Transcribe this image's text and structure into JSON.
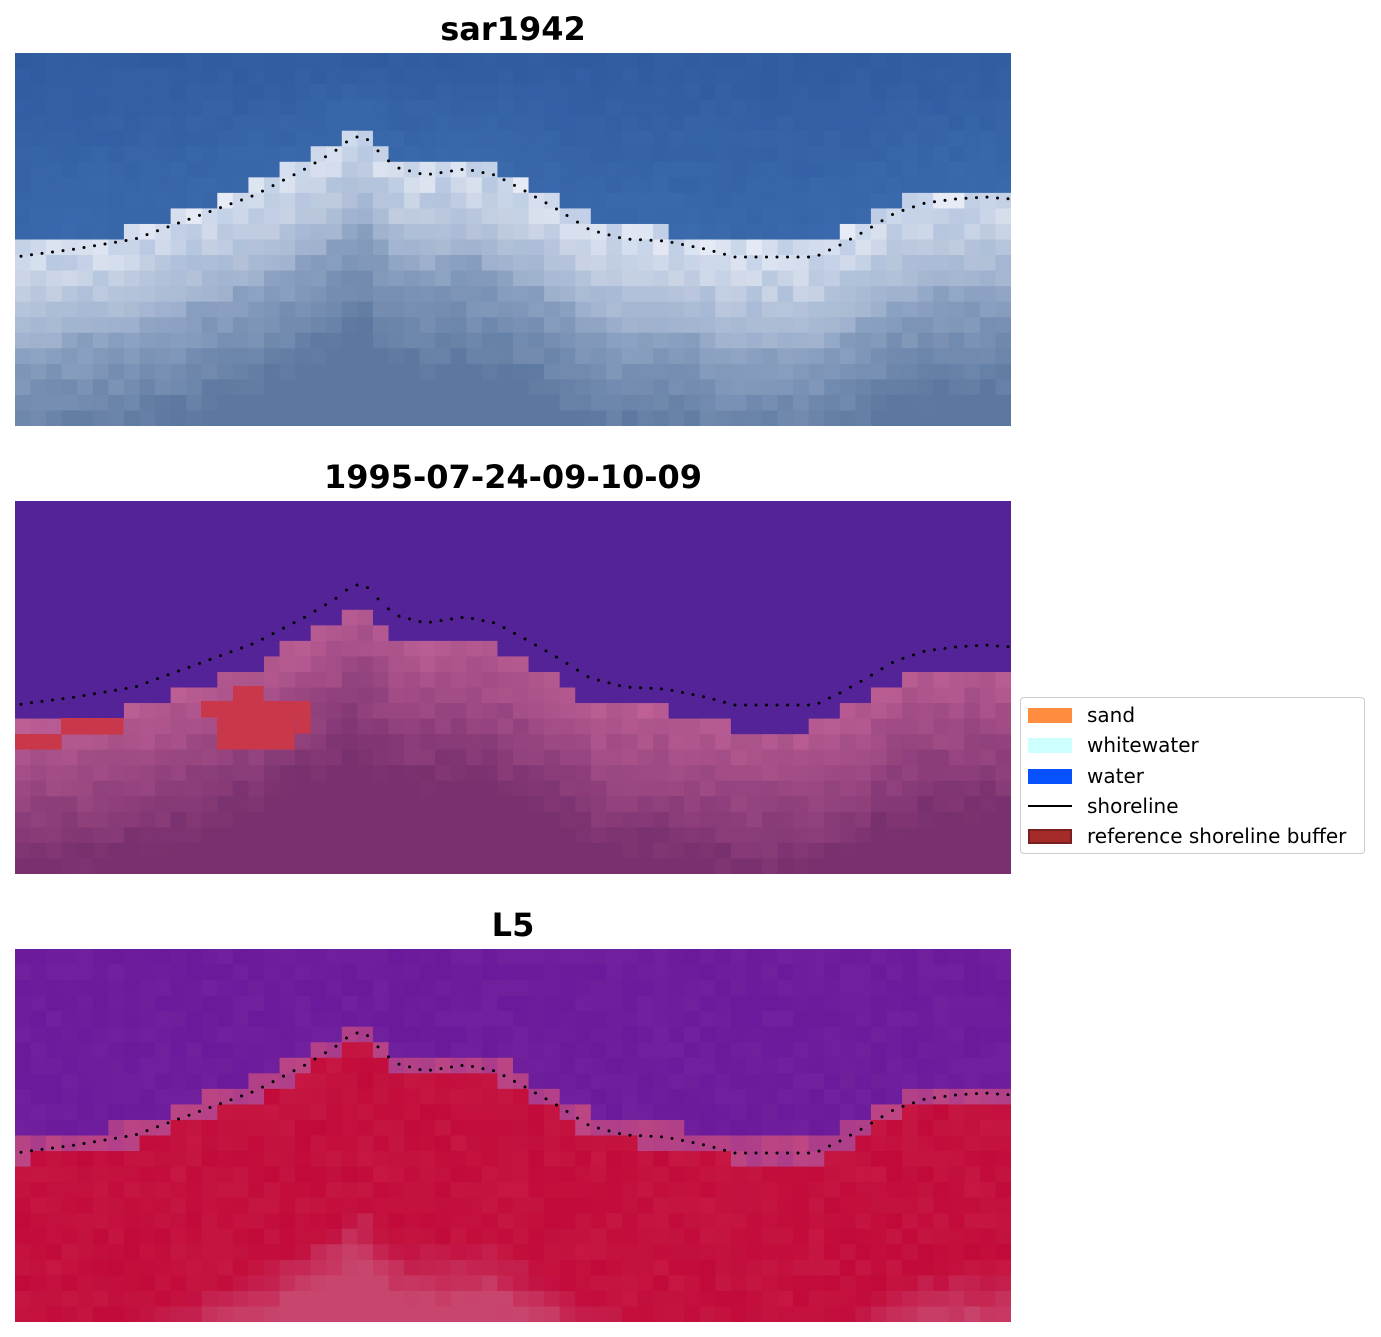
{
  "panels": [
    {
      "title": "sar1942",
      "style": "rgb"
    },
    {
      "title": "1995-07-24-09-10-09",
      "style": "classified"
    },
    {
      "title": "L5",
      "style": "index"
    }
  ],
  "legend": {
    "items": [
      {
        "label": "sand",
        "color": "#ff8c3f"
      },
      {
        "label": "whitewater",
        "color": "#ccfffe"
      },
      {
        "label": "water",
        "color": "#0852fe"
      },
      {
        "label": "shoreline",
        "color": "#000000",
        "kind": "line"
      },
      {
        "label": "reference shoreline buffer",
        "color": "#a52a2a"
      }
    ]
  },
  "colors": {
    "water_rgb": "#2f5a9e",
    "water_class": "#542397",
    "index_low": "#6a1a9a",
    "index_high": "#c20a3a",
    "buffer": "#c8384a"
  }
}
